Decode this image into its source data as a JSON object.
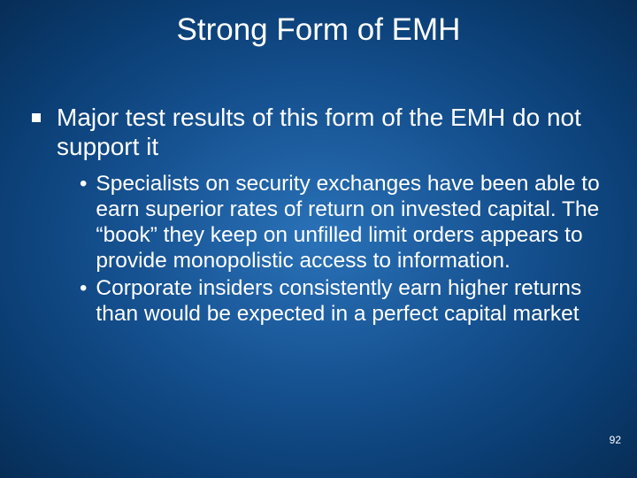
{
  "slide": {
    "title": "Strong Form of EMH",
    "pageNumber": "92",
    "background": {
      "gradient_center": "#2a72b8",
      "gradient_mid": "#15508f",
      "gradient_outer": "#0a3d72",
      "gradient_edge": "#072d56"
    },
    "textColor": "#ffffff",
    "titleFontSize": 35,
    "level1FontSize": 28,
    "level2FontSize": 24.5,
    "bullets": {
      "level1": [
        {
          "text": "Major test results of this form of the EMH do not support it"
        }
      ],
      "level2": [
        {
          "text": "Specialists on security exchanges have been able to earn superior rates of return on invested capital.  The “book” they keep on unfilled limit orders appears to provide monopolistic access to information."
        },
        {
          "text": "Corporate insiders consistently earn higher returns than would be expected in a perfect capital market"
        }
      ]
    }
  }
}
